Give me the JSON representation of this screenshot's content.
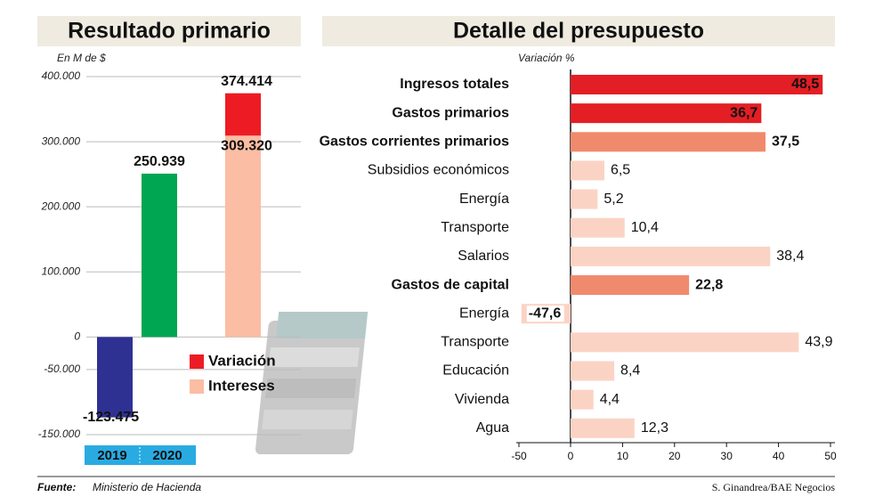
{
  "chart_data": [
    {
      "type": "stacked_bar",
      "title": "Resultado primario",
      "y_axis_label": "En M de $",
      "ylim": [
        -150000,
        400000
      ],
      "yticks": [
        {
          "value": 400000,
          "label": "400.000"
        },
        {
          "value": 300000,
          "label": "300.000"
        },
        {
          "value": 200000,
          "label": "200.000"
        },
        {
          "value": 100000,
          "label": "100.000"
        },
        0,
        {
          "value": -50000,
          "label": "-50.000"
        },
        {
          "value": -150000,
          "label": "-150.000"
        }
      ],
      "grid": true,
      "categories": [
        null,
        null,
        null
      ],
      "period_labels": [
        "2019",
        "2020"
      ],
      "series": [
        {
          "color": "#2e3192",
          "values": [
            -123475,
            null,
            null
          ],
          "value_labels": [
            "-123.475",
            null,
            null
          ]
        },
        {
          "color": "#00a651",
          "values": [
            null,
            250939,
            null
          ],
          "value_labels": [
            null,
            "250.939",
            null
          ]
        },
        {
          "name": "Intereses",
          "color": "#fbbda4",
          "values": [
            null,
            null,
            309320
          ],
          "value_labels": [
            null,
            null,
            "309.320"
          ]
        },
        {
          "name": "Variación",
          "color": "#ed1c24",
          "values": [
            null,
            null,
            65094
          ]
        }
      ],
      "total_labels": [
        null,
        null,
        {
          "value": 374414,
          "label": "374.414"
        }
      ]
    },
    {
      "type": "hbar",
      "title": "Detalle del presupuesto",
      "x_axis_label": "Variación %",
      "xlim": [
        -50,
        50
      ],
      "xticks": [
        -50,
        0,
        10,
        20,
        30,
        40,
        50
      ],
      "categories": [
        "Ingresos totales",
        "Gastos primarios",
        "Gastos corrientes primarios",
        "Subsidios económicos",
        "Energía",
        "Transporte",
        "Salarios",
        "Gastos de capital",
        "Energía",
        "Transporte",
        "Educación",
        "Vivienda",
        "Agua"
      ],
      "values": [
        48.5,
        36.7,
        37.5,
        6.5,
        5.2,
        10.4,
        38.4,
        22.8,
        -47.6,
        43.9,
        8.4,
        4.4,
        12.3
      ],
      "value_labels": [
        "48,5",
        "36,7",
        "37,5",
        "6,5",
        "5,2",
        "10,4",
        "38,4",
        "22,8",
        "-47,6",
        "43,9",
        "8,4",
        "4,4",
        "12,3"
      ],
      "colors": [
        "#e31e24",
        "#e31e24",
        "#f08a6c",
        "#fbd3c4",
        "#fbd3c4",
        "#fbd3c4",
        "#fbd3c4",
        "#f08a6c",
        "#fbd3c4",
        "#fbd3c4",
        "#fbd3c4",
        "#fbd3c4",
        "#fbd3c4"
      ],
      "bold_categories": [
        true,
        true,
        true,
        false,
        false,
        false,
        false,
        true,
        false,
        false,
        false,
        false,
        false
      ]
    }
  ],
  "footer": {
    "source_label": "Fuente:",
    "source": "Ministerio de Hacienda",
    "credit": "S. Ginandrea/BAE Negocios"
  }
}
